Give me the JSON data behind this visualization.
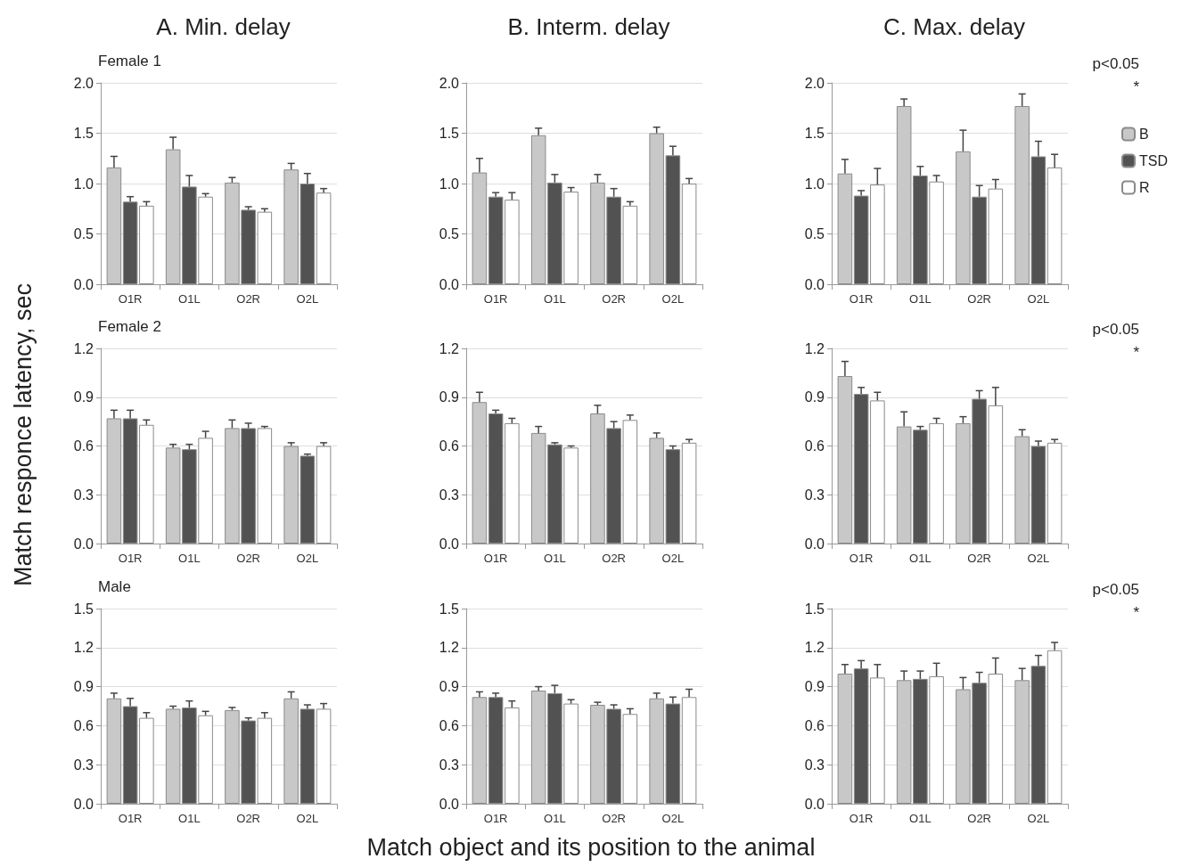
{
  "chart_data": [
    {
      "type": "bar",
      "title": "A. Min. delay",
      "subtitle": "Female 1",
      "categories": [
        "O1R",
        "O1L",
        "O2R",
        "O2L"
      ],
      "ylim": [
        0,
        2
      ],
      "yticks": [
        {
          "value": 0,
          "label": "0.0"
        },
        {
          "value": 0.5,
          "label": "0.5"
        },
        {
          "value": 1,
          "label": "1.0"
        },
        {
          "value": 1.5,
          "label": "1.5"
        },
        {
          "value": 2,
          "label": "2.0"
        }
      ],
      "grid": "y",
      "series": [
        {
          "color": "#c8c8c8",
          "values": [
            1.16,
            1.34,
            1.01,
            1.14
          ],
          "errors": [
            0.11,
            0.12,
            0.05,
            0.06
          ]
        },
        {
          "color": "#525252",
          "values": [
            0.82,
            0.97,
            0.74,
            1.0
          ],
          "errors": [
            0.05,
            0.11,
            0.03,
            0.1
          ]
        },
        {
          "color": "#ffffff",
          "values": [
            0.78,
            0.87,
            0.72,
            0.91
          ],
          "errors": [
            0.04,
            0.03,
            0.03,
            0.04
          ]
        }
      ]
    },
    {
      "type": "bar",
      "title": "B. Interm. delay",
      "categories": [
        "O1R",
        "O1L",
        "O2R",
        "O2L"
      ],
      "ylim": [
        0,
        2
      ],
      "yticks": [
        {
          "value": 0,
          "label": "0.0"
        },
        {
          "value": 0.5,
          "label": "0.5"
        },
        {
          "value": 1,
          "label": "1.0"
        },
        {
          "value": 1.5,
          "label": "1.5"
        },
        {
          "value": 2,
          "label": "2.0"
        }
      ],
      "grid": "y",
      "series": [
        {
          "color": "#c8c8c8",
          "values": [
            1.11,
            1.48,
            1.01,
            1.5
          ],
          "errors": [
            0.14,
            0.07,
            0.08,
            0.06
          ]
        },
        {
          "color": "#525252",
          "values": [
            0.87,
            1.01,
            0.87,
            1.28
          ],
          "errors": [
            0.04,
            0.08,
            0.08,
            0.09
          ]
        },
        {
          "color": "#ffffff",
          "values": [
            0.84,
            0.92,
            0.78,
            1.0
          ],
          "errors": [
            0.07,
            0.04,
            0.04,
            0.05
          ]
        }
      ]
    },
    {
      "type": "bar",
      "title": "C. Max. delay",
      "categories": [
        "O1R",
        "O1L",
        "O2R",
        "O2L"
      ],
      "ylim": [
        0,
        2
      ],
      "yticks": [
        {
          "value": 0,
          "label": "0.0"
        },
        {
          "value": 0.5,
          "label": "0.5"
        },
        {
          "value": 1,
          "label": "1.0"
        },
        {
          "value": 1.5,
          "label": "1.5"
        },
        {
          "value": 2,
          "label": "2.0"
        }
      ],
      "grid": "y",
      "legend": "right",
      "annotations": [
        "p<0.05",
        "*"
      ],
      "series": [
        {
          "name": "B",
          "color": "#c8c8c8",
          "values": [
            1.1,
            1.77,
            1.32,
            1.77
          ],
          "errors": [
            0.14,
            0.07,
            0.21,
            0.12
          ]
        },
        {
          "name": "TSD",
          "color": "#525252",
          "values": [
            0.88,
            1.08,
            0.87,
            1.27
          ],
          "errors": [
            0.05,
            0.09,
            0.11,
            0.15
          ]
        },
        {
          "name": "R",
          "color": "#ffffff",
          "values": [
            0.99,
            1.02,
            0.95,
            1.16
          ],
          "errors": [
            0.16,
            0.06,
            0.09,
            0.13
          ]
        }
      ]
    },
    {
      "type": "bar",
      "subtitle": "Female 2",
      "ylabel": "Match responce latency, sec",
      "categories": [
        "O1R",
        "O1L",
        "O2R",
        "O2L"
      ],
      "ylim": [
        0,
        1.2
      ],
      "yticks": [
        {
          "value": 0,
          "label": "0.0"
        },
        {
          "value": 0.3,
          "label": "0.3"
        },
        {
          "value": 0.6,
          "label": "0.6"
        },
        {
          "value": 0.9,
          "label": "0.9"
        },
        {
          "value": 1.2,
          "label": "1.2"
        }
      ],
      "grid": "y",
      "series": [
        {
          "color": "#c8c8c8",
          "values": [
            0.77,
            0.59,
            0.71,
            0.6
          ],
          "errors": [
            0.05,
            0.02,
            0.05,
            0.02
          ]
        },
        {
          "color": "#525252",
          "values": [
            0.77,
            0.58,
            0.71,
            0.54
          ],
          "errors": [
            0.05,
            0.03,
            0.03,
            0.01
          ]
        },
        {
          "color": "#ffffff",
          "values": [
            0.73,
            0.65,
            0.71,
            0.6
          ],
          "errors": [
            0.03,
            0.04,
            0.01,
            0.02
          ]
        }
      ]
    },
    {
      "type": "bar",
      "categories": [
        "O1R",
        "O1L",
        "O2R",
        "O2L"
      ],
      "ylim": [
        0,
        1.2
      ],
      "yticks": [
        {
          "value": 0,
          "label": "0.0"
        },
        {
          "value": 0.3,
          "label": "0.3"
        },
        {
          "value": 0.6,
          "label": "0.6"
        },
        {
          "value": 0.9,
          "label": "0.9"
        },
        {
          "value": 1.2,
          "label": "1.2"
        }
      ],
      "grid": "y",
      "series": [
        {
          "color": "#c8c8c8",
          "values": [
            0.87,
            0.68,
            0.8,
            0.65
          ],
          "errors": [
            0.06,
            0.04,
            0.05,
            0.03
          ]
        },
        {
          "color": "#525252",
          "values": [
            0.8,
            0.61,
            0.71,
            0.58
          ],
          "errors": [
            0.02,
            0.01,
            0.04,
            0.02
          ]
        },
        {
          "color": "#ffffff",
          "values": [
            0.74,
            0.59,
            0.76,
            0.62
          ],
          "errors": [
            0.03,
            0.01,
            0.03,
            0.02
          ]
        }
      ]
    },
    {
      "type": "bar",
      "categories": [
        "O1R",
        "O1L",
        "O2R",
        "O2L"
      ],
      "ylim": [
        0,
        1.2
      ],
      "yticks": [
        {
          "value": 0,
          "label": "0.0"
        },
        {
          "value": 0.3,
          "label": "0.3"
        },
        {
          "value": 0.6,
          "label": "0.6"
        },
        {
          "value": 0.9,
          "label": "0.9"
        },
        {
          "value": 1.2,
          "label": "1.2"
        }
      ],
      "grid": "y",
      "annotations": [
        "p<0.05",
        "*"
      ],
      "series": [
        {
          "color": "#c8c8c8",
          "values": [
            1.03,
            0.72,
            0.74,
            0.66
          ],
          "errors": [
            0.09,
            0.09,
            0.04,
            0.04
          ]
        },
        {
          "color": "#525252",
          "values": [
            0.92,
            0.7,
            0.89,
            0.6
          ],
          "errors": [
            0.04,
            0.02,
            0.05,
            0.03
          ]
        },
        {
          "color": "#ffffff",
          "values": [
            0.88,
            0.74,
            0.85,
            0.62
          ],
          "errors": [
            0.05,
            0.03,
            0.11,
            0.02
          ]
        }
      ]
    },
    {
      "type": "bar",
      "subtitle": "Male",
      "categories": [
        "O1R",
        "O1L",
        "O2R",
        "O2L"
      ],
      "ylim": [
        0,
        1.5
      ],
      "yticks": [
        {
          "value": 0,
          "label": "0.0"
        },
        {
          "value": 0.3,
          "label": "0.3"
        },
        {
          "value": 0.6,
          "label": "0.6"
        },
        {
          "value": 0.9,
          "label": "0.9"
        },
        {
          "value": 1.2,
          "label": "1.2"
        },
        {
          "value": 1.5,
          "label": "1.5"
        }
      ],
      "grid": "y",
      "series": [
        {
          "color": "#c8c8c8",
          "values": [
            0.81,
            0.73,
            0.72,
            0.81
          ],
          "errors": [
            0.04,
            0.02,
            0.02,
            0.05
          ]
        },
        {
          "color": "#525252",
          "values": [
            0.75,
            0.74,
            0.64,
            0.73
          ],
          "errors": [
            0.06,
            0.05,
            0.02,
            0.03
          ]
        },
        {
          "color": "#ffffff",
          "values": [
            0.66,
            0.68,
            0.66,
            0.73
          ],
          "errors": [
            0.04,
            0.03,
            0.04,
            0.04
          ]
        }
      ]
    },
    {
      "type": "bar",
      "xlabel": "Match object and its position to the animal",
      "categories": [
        "O1R",
        "O1L",
        "O2R",
        "O2L"
      ],
      "ylim": [
        0,
        1.5
      ],
      "yticks": [
        {
          "value": 0,
          "label": "0.0"
        },
        {
          "value": 0.3,
          "label": "0.3"
        },
        {
          "value": 0.6,
          "label": "0.6"
        },
        {
          "value": 0.9,
          "label": "0.9"
        },
        {
          "value": 1.2,
          "label": "1.2"
        },
        {
          "value": 1.5,
          "label": "1.5"
        }
      ],
      "grid": "y",
      "series": [
        {
          "color": "#c8c8c8",
          "values": [
            0.82,
            0.87,
            0.76,
            0.81
          ],
          "errors": [
            0.04,
            0.03,
            0.02,
            0.04
          ]
        },
        {
          "color": "#525252",
          "values": [
            0.82,
            0.85,
            0.73,
            0.77
          ],
          "errors": [
            0.03,
            0.06,
            0.03,
            0.05
          ]
        },
        {
          "color": "#ffffff",
          "values": [
            0.74,
            0.77,
            0.69,
            0.82
          ],
          "errors": [
            0.05,
            0.03,
            0.04,
            0.06
          ]
        }
      ]
    },
    {
      "type": "bar",
      "categories": [
        "O1R",
        "O1L",
        "O2R",
        "O2L"
      ],
      "ylim": [
        0,
        1.5
      ],
      "yticks": [
        {
          "value": 0,
          "label": "0.0"
        },
        {
          "value": 0.3,
          "label": "0.3"
        },
        {
          "value": 0.6,
          "label": "0.6"
        },
        {
          "value": 0.9,
          "label": "0.9"
        },
        {
          "value": 1.2,
          "label": "1.2"
        },
        {
          "value": 1.5,
          "label": "1.5"
        }
      ],
      "grid": "y",
      "annotations": [
        "p<0.05",
        "*"
      ],
      "series": [
        {
          "color": "#c8c8c8",
          "values": [
            1.0,
            0.95,
            0.88,
            0.95
          ],
          "errors": [
            0.07,
            0.07,
            0.09,
            0.09
          ]
        },
        {
          "color": "#525252",
          "values": [
            1.04,
            0.96,
            0.93,
            1.06
          ],
          "errors": [
            0.06,
            0.06,
            0.08,
            0.08
          ]
        },
        {
          "color": "#ffffff",
          "values": [
            0.97,
            0.98,
            1.0,
            1.18
          ],
          "errors": [
            0.1,
            0.1,
            0.12,
            0.06
          ]
        }
      ]
    }
  ]
}
